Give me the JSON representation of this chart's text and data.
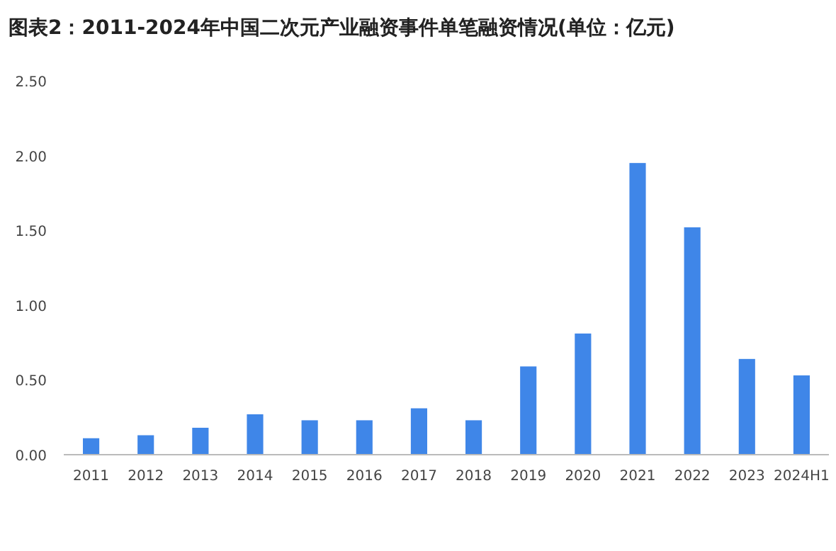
{
  "chart_data": {
    "type": "bar",
    "title": "图表2：2011-2024年中国二次元产业融资事件单笔融资情况(单位：亿元)",
    "categories": [
      "2011",
      "2012",
      "2013",
      "2014",
      "2015",
      "2016",
      "2017",
      "2018",
      "2019",
      "2020",
      "2021",
      "2022",
      "2023",
      "2024H1"
    ],
    "values": [
      0.11,
      0.13,
      0.18,
      0.27,
      0.23,
      0.23,
      0.31,
      0.23,
      0.59,
      0.81,
      1.95,
      1.52,
      0.64,
      0.53
    ],
    "color": "#3f86e8",
    "ylim": [
      0,
      2.5
    ],
    "yticks": [
      {
        "value": 0,
        "label": "0.00"
      },
      {
        "value": 0.5,
        "label": "0.50"
      },
      {
        "value": 1,
        "label": "1.00"
      },
      {
        "value": 1.5,
        "label": "1.50"
      },
      {
        "value": 2,
        "label": "2.00"
      },
      {
        "value": 2.5,
        "label": "2.50"
      }
    ]
  }
}
